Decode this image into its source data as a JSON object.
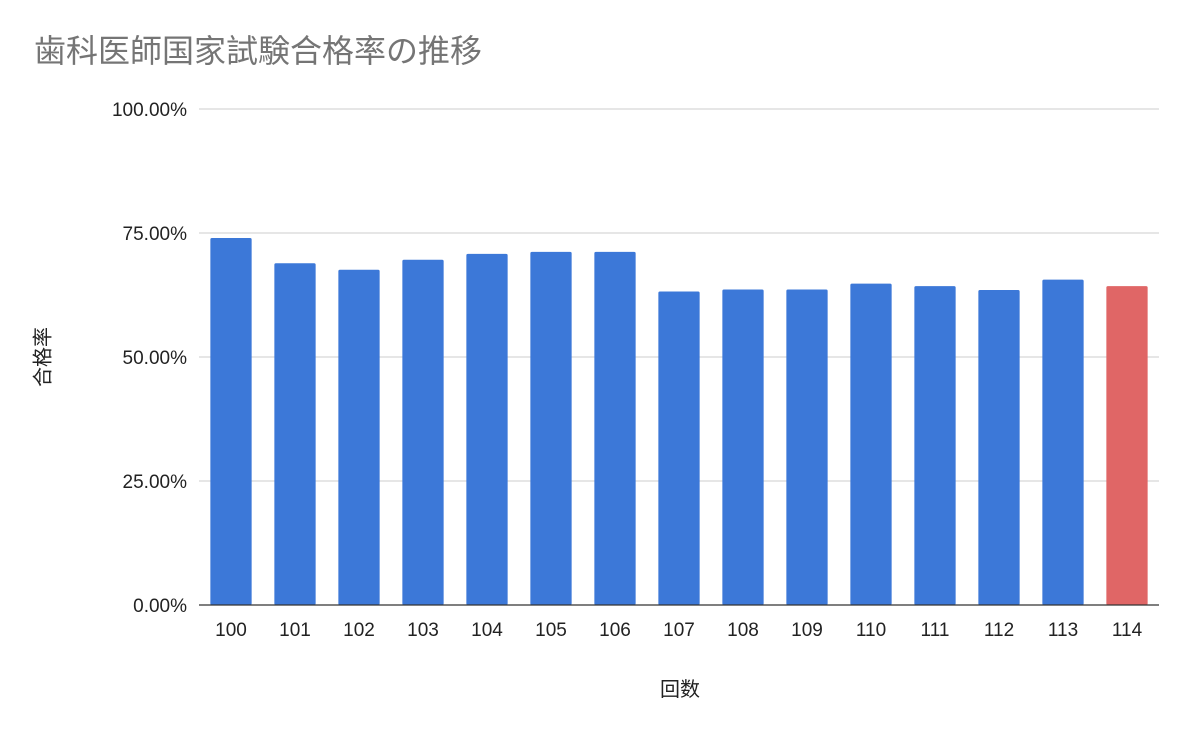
{
  "chart_data": {
    "type": "bar",
    "title": "歯科医師国家試験合格率の推移",
    "xlabel": "回数",
    "ylabel": "合格率",
    "ylim": [
      0,
      100
    ],
    "yticks": [
      "0.00%",
      "25.00%",
      "50.00%",
      "75.00%",
      "100.00%"
    ],
    "ytick_values": [
      0,
      25,
      50,
      75,
      100
    ],
    "grid": true,
    "categories": [
      "100",
      "101",
      "102",
      "103",
      "104",
      "105",
      "106",
      "107",
      "108",
      "109",
      "110",
      "111",
      "112",
      "113",
      "114"
    ],
    "values": [
      74.0,
      68.9,
      67.6,
      69.6,
      70.8,
      71.2,
      71.2,
      63.2,
      63.6,
      63.6,
      64.8,
      64.3,
      63.5,
      65.6,
      64.3
    ],
    "bar_colors": [
      "#3c78d8",
      "#3c78d8",
      "#3c78d8",
      "#3c78d8",
      "#3c78d8",
      "#3c78d8",
      "#3c78d8",
      "#3c78d8",
      "#3c78d8",
      "#3c78d8",
      "#3c78d8",
      "#3c78d8",
      "#3c78d8",
      "#3c78d8",
      "#e06666"
    ],
    "colors": {
      "primary": "#3c78d8",
      "highlight": "#e06666",
      "grid": "#cccccc",
      "axis": "#333333"
    }
  }
}
